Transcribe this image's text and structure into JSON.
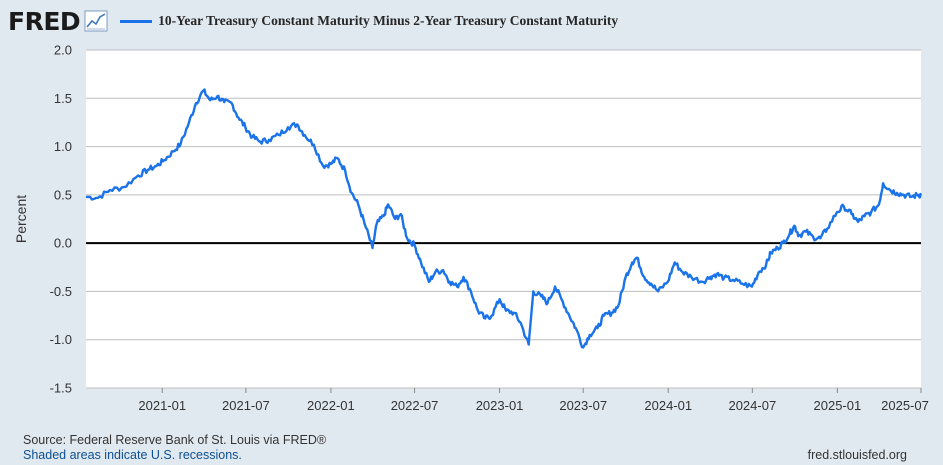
{
  "header": {
    "logo_text": "FRED",
    "logo_icon": "line-chart-icon",
    "series_label": "10-Year Treasury Constant Maturity Minus 2-Year Treasury Constant Maturity"
  },
  "colors": {
    "series": "#1a73e8",
    "plot_bg": "#ffffff",
    "page_bg": "#e1e9f0",
    "grid": "#bfbfbf",
    "zero_line": "#000000"
  },
  "footer": {
    "source": "Source: Federal Reserve Bank of St. Louis via FRED®",
    "recession_note": "Shaded areas indicate U.S. recessions.",
    "site": "fred.stlouisfed.org"
  },
  "chart_data": {
    "type": "line",
    "ylabel": "Percent",
    "xlabel": "",
    "ylim": [
      -1.5,
      2.0
    ],
    "yticks": [
      2.0,
      1.5,
      1.0,
      0.5,
      0.0,
      -0.5,
      -1.0,
      -1.5
    ],
    "ytick_labels": [
      "2.0",
      "1.5",
      "1.0",
      "0.5",
      "0.0",
      "-0.5",
      "-1.0",
      "-1.5"
    ],
    "xlim": [
      "2020-07-20",
      "2025-07-01"
    ],
    "xticks": [
      "2021-01",
      "2021-07",
      "2022-01",
      "2022-07",
      "2023-01",
      "2023-07",
      "2024-01",
      "2024-07",
      "2025-01",
      "2025-07"
    ],
    "grid": "horizontal",
    "zero_line": true,
    "series": [
      {
        "name": "10-Year Treasury Constant Maturity Minus 2-Year Treasury Constant Maturity",
        "points": [
          [
            "2020-07-20",
            0.48
          ],
          [
            "2020-08-15",
            0.47
          ],
          [
            "2020-09-10",
            0.55
          ],
          [
            "2020-10-10",
            0.58
          ],
          [
            "2020-11-10",
            0.7
          ],
          [
            "2020-12-01",
            0.76
          ],
          [
            "2020-12-20",
            0.8
          ],
          [
            "2021-01-05",
            0.86
          ],
          [
            "2021-01-25",
            0.95
          ],
          [
            "2021-02-10",
            1.03
          ],
          [
            "2021-02-28",
            1.25
          ],
          [
            "2021-03-15",
            1.45
          ],
          [
            "2021-03-31",
            1.58
          ],
          [
            "2021-04-15",
            1.48
          ],
          [
            "2021-04-30",
            1.52
          ],
          [
            "2021-05-15",
            1.46
          ],
          [
            "2021-05-31",
            1.45
          ],
          [
            "2021-06-15",
            1.3
          ],
          [
            "2021-06-30",
            1.2
          ],
          [
            "2021-07-15",
            1.1
          ],
          [
            "2021-08-01",
            1.05
          ],
          [
            "2021-08-20",
            1.07
          ],
          [
            "2021-09-10",
            1.12
          ],
          [
            "2021-09-30",
            1.2
          ],
          [
            "2021-10-20",
            1.23
          ],
          [
            "2021-11-05",
            1.12
          ],
          [
            "2021-11-25",
            1.02
          ],
          [
            "2021-12-15",
            0.8
          ],
          [
            "2022-01-01",
            0.82
          ],
          [
            "2022-01-15",
            0.88
          ],
          [
            "2022-02-01",
            0.75
          ],
          [
            "2022-02-15",
            0.52
          ],
          [
            "2022-03-01",
            0.4
          ],
          [
            "2022-03-15",
            0.2
          ],
          [
            "2022-04-01",
            -0.05
          ],
          [
            "2022-04-10",
            0.2
          ],
          [
            "2022-04-25",
            0.28
          ],
          [
            "2022-05-05",
            0.4
          ],
          [
            "2022-05-20",
            0.25
          ],
          [
            "2022-06-01",
            0.3
          ],
          [
            "2022-06-15",
            0.05
          ],
          [
            "2022-07-01",
            -0.02
          ],
          [
            "2022-07-15",
            -0.2
          ],
          [
            "2022-08-01",
            -0.4
          ],
          [
            "2022-08-15",
            -0.3
          ],
          [
            "2022-09-01",
            -0.28
          ],
          [
            "2022-09-15",
            -0.4
          ],
          [
            "2022-10-01",
            -0.45
          ],
          [
            "2022-10-15",
            -0.35
          ],
          [
            "2022-10-31",
            -0.5
          ],
          [
            "2022-11-15",
            -0.7
          ],
          [
            "2022-12-01",
            -0.78
          ],
          [
            "2022-12-15",
            -0.75
          ],
          [
            "2023-01-01",
            -0.58
          ],
          [
            "2023-01-15",
            -0.7
          ],
          [
            "2023-02-01",
            -0.72
          ],
          [
            "2023-02-15",
            -0.82
          ],
          [
            "2023-03-05",
            -1.05
          ],
          [
            "2023-03-15",
            -0.5
          ],
          [
            "2023-04-01",
            -0.55
          ],
          [
            "2023-04-15",
            -0.62
          ],
          [
            "2023-05-01",
            -0.45
          ],
          [
            "2023-05-15",
            -0.58
          ],
          [
            "2023-06-01",
            -0.75
          ],
          [
            "2023-06-15",
            -0.88
          ],
          [
            "2023-07-01",
            -1.08
          ],
          [
            "2023-07-15",
            -0.95
          ],
          [
            "2023-08-01",
            -0.88
          ],
          [
            "2023-08-15",
            -0.75
          ],
          [
            "2023-09-01",
            -0.72
          ],
          [
            "2023-09-15",
            -0.65
          ],
          [
            "2023-10-01",
            -0.35
          ],
          [
            "2023-10-15",
            -0.2
          ],
          [
            "2023-10-25",
            -0.15
          ],
          [
            "2023-11-10",
            -0.35
          ],
          [
            "2023-11-25",
            -0.42
          ],
          [
            "2023-12-10",
            -0.5
          ],
          [
            "2023-12-31",
            -0.4
          ],
          [
            "2024-01-15",
            -0.2
          ],
          [
            "2024-02-01",
            -0.3
          ],
          [
            "2024-02-20",
            -0.35
          ],
          [
            "2024-03-15",
            -0.4
          ],
          [
            "2024-04-01",
            -0.35
          ],
          [
            "2024-04-15",
            -0.32
          ],
          [
            "2024-05-01",
            -0.36
          ],
          [
            "2024-05-20",
            -0.38
          ],
          [
            "2024-06-10",
            -0.42
          ],
          [
            "2024-06-30",
            -0.45
          ],
          [
            "2024-07-15",
            -0.3
          ],
          [
            "2024-07-31",
            -0.22
          ],
          [
            "2024-08-10",
            -0.1
          ],
          [
            "2024-08-25",
            -0.05
          ],
          [
            "2024-09-05",
            0.0
          ],
          [
            "2024-09-20",
            0.1
          ],
          [
            "2024-09-30",
            0.18
          ],
          [
            "2024-10-10",
            0.08
          ],
          [
            "2024-10-25",
            0.12
          ],
          [
            "2024-11-10",
            0.06
          ],
          [
            "2024-11-25",
            0.05
          ],
          [
            "2024-12-10",
            0.15
          ],
          [
            "2024-12-31",
            0.32
          ],
          [
            "2025-01-15",
            0.38
          ],
          [
            "2025-02-01",
            0.3
          ],
          [
            "2025-02-15",
            0.22
          ],
          [
            "2025-03-01",
            0.28
          ],
          [
            "2025-03-15",
            0.32
          ],
          [
            "2025-04-01",
            0.4
          ],
          [
            "2025-04-10",
            0.62
          ],
          [
            "2025-04-25",
            0.55
          ],
          [
            "2025-05-10",
            0.52
          ],
          [
            "2025-05-25",
            0.5
          ],
          [
            "2025-06-10",
            0.48
          ],
          [
            "2025-06-25",
            0.5
          ],
          [
            "2025-07-01",
            0.5
          ]
        ]
      }
    ]
  }
}
